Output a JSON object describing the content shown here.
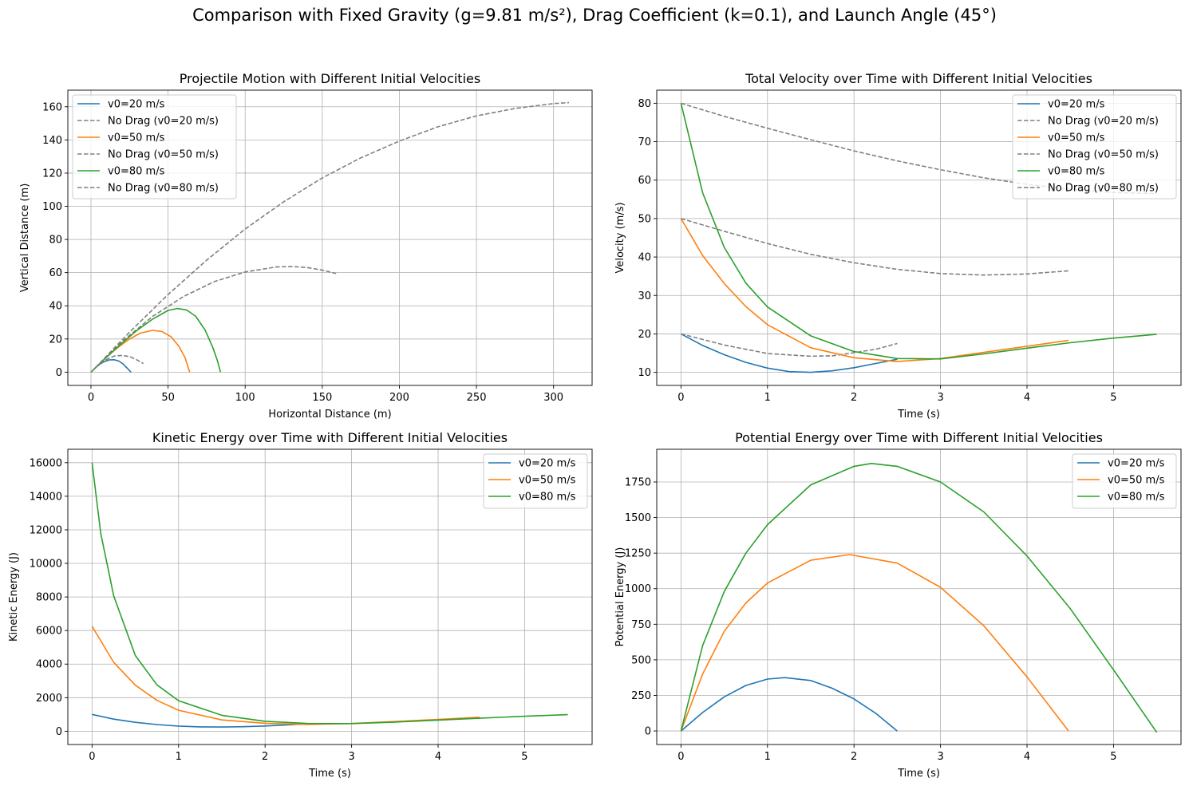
{
  "figure": {
    "title": "Comparison with Fixed Gravity (g=9.81 m/s²), Drag Coefficient (k=0.1), and Launch Angle (45°)"
  },
  "colors": {
    "v20": "#1f77b4",
    "v50": "#ff7f0e",
    "v80": "#2ca02c",
    "nodrag": "#808080",
    "grid": "#b0b0b0"
  },
  "chart_data": [
    {
      "type": "line",
      "title": "Projectile Motion with Different Initial Velocities",
      "xlabel": "Horizontal Distance (m)",
      "ylabel": "Vertical Distance (m)",
      "xlim": [
        -15,
        325
      ],
      "ylim": [
        -8,
        170
      ],
      "xticks": [
        0,
        50,
        100,
        150,
        200,
        250,
        300
      ],
      "yticks": [
        0,
        20,
        40,
        60,
        80,
        100,
        120,
        140,
        160
      ],
      "grid": true,
      "legend_position": "upper-left",
      "series": [
        {
          "name": "v0=20 m/s",
          "color": "#1f77b4",
          "style": "solid",
          "x": [
            0,
            3,
            6,
            9,
            12,
            15,
            18,
            21,
            24,
            26
          ],
          "y": [
            0,
            2.8,
            5.0,
            6.5,
            7.4,
            7.5,
            6.7,
            4.8,
            1.9,
            0
          ]
        },
        {
          "name": "No Drag (v0=20 m/s)",
          "color": "#808080",
          "style": "dashed",
          "x": [
            0,
            5,
            10,
            15,
            20,
            25,
            30,
            34
          ],
          "y": [
            0,
            4.4,
            7.6,
            9.7,
            10.1,
            9.4,
            7.3,
            5.2
          ]
        },
        {
          "name": "v0=50 m/s",
          "color": "#ff7f0e",
          "style": "solid",
          "x": [
            0,
            8,
            16,
            24,
            32,
            40,
            46,
            52,
            57,
            61,
            64
          ],
          "y": [
            0,
            7.2,
            13.8,
            19.4,
            23.5,
            25.2,
            24.5,
            21.3,
            15.6,
            8.8,
            0
          ]
        },
        {
          "name": "No Drag (v0=50 m/s)",
          "color": "#808080",
          "style": "dashed",
          "x": [
            0,
            20,
            40,
            60,
            80,
            100,
            120,
            130,
            140,
            150,
            159
          ],
          "y": [
            0,
            18.3,
            33.6,
            45.6,
            54.6,
            60.4,
            63.4,
            63.7,
            63.1,
            61.5,
            59.5
          ]
        },
        {
          "name": "v0=80 m/s",
          "color": "#2ca02c",
          "style": "solid",
          "x": [
            0,
            10,
            20,
            30,
            40,
            50,
            56,
            62,
            68,
            74,
            79,
            82,
            84
          ],
          "y": [
            0,
            9.0,
            17.4,
            25.3,
            32.0,
            37.2,
            38.4,
            37.5,
            33.6,
            25.4,
            15.0,
            7.0,
            0
          ]
        },
        {
          "name": "No Drag (v0=80 m/s)",
          "color": "#808080",
          "style": "dashed",
          "x": [
            0,
            25,
            50,
            75,
            100,
            125,
            150,
            175,
            200,
            225,
            250,
            275,
            300,
            310
          ],
          "y": [
            0,
            24.1,
            46.8,
            67.5,
            86.3,
            102.7,
            117.1,
            129.2,
            139.3,
            147.9,
            154.5,
            159.0,
            161.9,
            162.5
          ]
        }
      ]
    },
    {
      "type": "line",
      "title": "Total Velocity over Time with Different Initial Velocities",
      "xlabel": "Time (s)",
      "ylabel": "Velocity (m/s)",
      "xlim": [
        -0.28,
        5.78
      ],
      "ylim": [
        6.6,
        83.4
      ],
      "xticks": [
        0,
        1,
        2,
        3,
        4,
        5
      ],
      "yticks": [
        10,
        20,
        30,
        40,
        50,
        60,
        70,
        80
      ],
      "grid": true,
      "legend_position": "upper-right",
      "series": [
        {
          "name": "v0=20 m/s",
          "color": "#1f77b4",
          "style": "solid",
          "x": [
            0,
            0.25,
            0.5,
            0.75,
            1.0,
            1.25,
            1.5,
            1.75,
            2.0,
            2.25,
            2.5
          ],
          "y": [
            20,
            17.0,
            14.6,
            12.6,
            11.1,
            10.2,
            10.0,
            10.4,
            11.2,
            12.3,
            13.4
          ]
        },
        {
          "name": "No Drag (v0=20 m/s)",
          "color": "#808080",
          "style": "dashed",
          "x": [
            0,
            0.5,
            1.0,
            1.5,
            1.75,
            2.0,
            2.25,
            2.5
          ],
          "y": [
            20,
            17.1,
            14.9,
            14.2,
            14.3,
            15.1,
            16.0,
            17.5
          ]
        },
        {
          "name": "v0=50 m/s",
          "color": "#ff7f0e",
          "style": "solid",
          "x": [
            0,
            0.25,
            0.5,
            0.75,
            1.0,
            1.5,
            2.0,
            2.5,
            3.0,
            3.5,
            4.0,
            4.48
          ],
          "y": [
            50,
            40.4,
            33.1,
            27.1,
            22.4,
            16.4,
            13.8,
            12.8,
            13.6,
            15.2,
            16.8,
            18.3
          ]
        },
        {
          "name": "No Drag (v0=50 m/s)",
          "color": "#808080",
          "style": "dashed",
          "x": [
            0,
            0.5,
            1.0,
            1.5,
            2.0,
            2.5,
            3.0,
            3.5,
            4.0,
            4.48
          ],
          "y": [
            50,
            46.7,
            43.5,
            40.7,
            38.5,
            36.8,
            35.7,
            35.3,
            35.6,
            36.4
          ]
        },
        {
          "name": "v0=80 m/s",
          "color": "#2ca02c",
          "style": "solid",
          "x": [
            0,
            0.25,
            0.5,
            0.75,
            1.0,
            1.5,
            2.0,
            2.5,
            3.0,
            3.5,
            4.0,
            4.5,
            5.0,
            5.5
          ],
          "y": [
            80,
            56.7,
            42.5,
            33.2,
            27.0,
            19.5,
            15.4,
            13.6,
            13.5,
            14.8,
            16.3,
            17.7,
            18.9,
            19.9
          ]
        },
        {
          "name": "No Drag (v0=80 m/s)",
          "color": "#808080",
          "style": "dashed",
          "x": [
            0,
            0.5,
            1.0,
            1.5,
            2.0,
            2.5,
            3.0,
            3.5,
            4.0,
            4.5,
            5.0,
            5.5
          ],
          "y": [
            80,
            76.6,
            73.5,
            70.5,
            67.6,
            65.0,
            62.7,
            60.6,
            58.9,
            57.6,
            56.8,
            56.5
          ]
        }
      ]
    },
    {
      "type": "line",
      "title": "Kinetic Energy over Time with Different Initial Velocities",
      "xlabel": "Time (s)",
      "ylabel": "Kinetic Energy (J)",
      "xlim": [
        -0.28,
        5.78
      ],
      "ylim": [
        -790,
        16800
      ],
      "xticks": [
        0,
        1,
        2,
        3,
        4,
        5
      ],
      "yticks": [
        0,
        2000,
        4000,
        6000,
        8000,
        10000,
        12000,
        14000,
        16000
      ],
      "grid": true,
      "legend_position": "upper-right",
      "series": [
        {
          "name": "v0=20 m/s",
          "color": "#1f77b4",
          "style": "solid",
          "x": [
            0,
            0.25,
            0.5,
            0.75,
            1.0,
            1.25,
            1.5,
            1.75,
            2.0,
            2.25,
            2.5
          ],
          "y": [
            1000,
            723,
            533,
            397,
            308,
            260,
            250,
            270,
            314,
            378,
            449
          ]
        },
        {
          "name": "v0=50 m/s",
          "color": "#ff7f0e",
          "style": "solid",
          "x": [
            0,
            0.25,
            0.5,
            0.75,
            1.0,
            1.5,
            2.0,
            2.5,
            3.0,
            3.5,
            4.0,
            4.48
          ],
          "y": [
            6250,
            4100,
            2740,
            1840,
            1250,
            672,
            476,
            410,
            462,
            578,
            706,
            837
          ]
        },
        {
          "name": "v0=80 m/s",
          "color": "#2ca02c",
          "style": "solid",
          "x": [
            0,
            0.1,
            0.25,
            0.5,
            0.75,
            1.0,
            1.5,
            2.0,
            2.5,
            3.0,
            3.5,
            4.0,
            4.5,
            5.0,
            5.5
          ],
          "y": [
            16000,
            11800,
            8060,
            4510,
            2760,
            1820,
            950,
            593,
            462,
            456,
            548,
            663,
            783,
            893,
            990
          ]
        }
      ]
    },
    {
      "type": "line",
      "title": "Potential Energy over Time with Different Initial Velocities",
      "xlabel": "Time (s)",
      "ylabel": "Potential Energy (J)",
      "xlim": [
        -0.28,
        5.78
      ],
      "ylim": [
        -95,
        1980
      ],
      "xticks": [
        0,
        1,
        2,
        3,
        4,
        5
      ],
      "yticks": [
        0,
        250,
        500,
        750,
        1000,
        1250,
        1500,
        1750
      ],
      "grid": true,
      "legend_position": "upper-right",
      "series": [
        {
          "name": "v0=20 m/s",
          "color": "#1f77b4",
          "style": "solid",
          "x": [
            0,
            0.25,
            0.5,
            0.75,
            1.0,
            1.2,
            1.5,
            1.75,
            2.0,
            2.25,
            2.5
          ],
          "y": [
            0,
            130,
            240,
            320,
            365,
            375,
            355,
            300,
            225,
            125,
            0
          ]
        },
        {
          "name": "v0=50 m/s",
          "color": "#ff7f0e",
          "style": "solid",
          "x": [
            0,
            0.25,
            0.5,
            0.75,
            1.0,
            1.5,
            1.95,
            2.5,
            3.0,
            3.5,
            4.0,
            4.48
          ],
          "y": [
            0,
            400,
            700,
            900,
            1040,
            1200,
            1240,
            1180,
            1010,
            740,
            380,
            0
          ]
        },
        {
          "name": "v0=80 m/s",
          "color": "#2ca02c",
          "style": "solid",
          "x": [
            0,
            0.25,
            0.5,
            0.75,
            1.0,
            1.5,
            2.0,
            2.2,
            2.5,
            3.0,
            3.5,
            4.0,
            4.5,
            5.0,
            5.5
          ],
          "y": [
            0,
            600,
            980,
            1250,
            1450,
            1730,
            1860,
            1880,
            1860,
            1750,
            1540,
            1230,
            860,
            430,
            -10
          ]
        }
      ]
    }
  ]
}
